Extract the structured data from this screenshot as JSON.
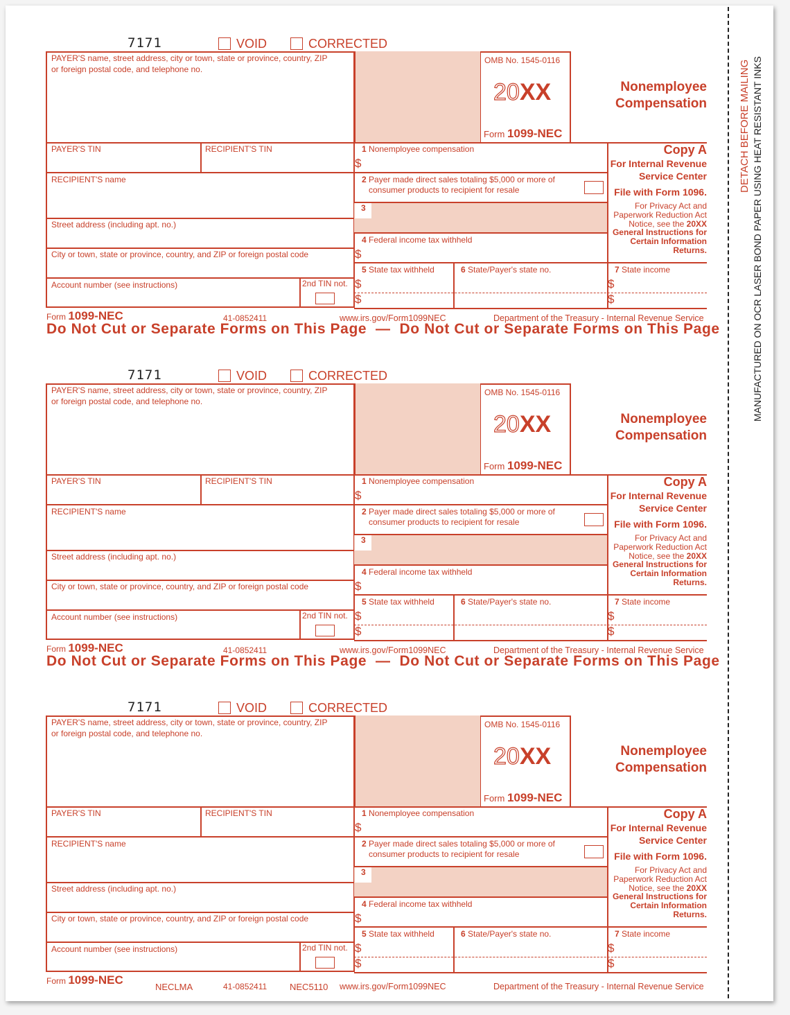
{
  "form": {
    "code": "7171",
    "void_label": "VOID",
    "corrected_label": "CORRECTED",
    "payer_name_label_1": "PAYER'S name, street address, city or town, state or province, country, ZIP",
    "payer_name_label_2": "or foreign postal code, and telephone no.",
    "omb": "OMB No. 1545-0116",
    "year_prefix": "20",
    "year_suffix": "XX",
    "form_word": "Form",
    "form_number": "1099-NEC",
    "title_1": "Nonemployee",
    "title_2": "Compensation",
    "payer_tin": "PAYER'S TIN",
    "recipient_tin": "RECIPIENT'S TIN",
    "recipient_name": "RECIPIENT'S name",
    "street": "Street address (including apt. no.)",
    "city": "City or town, state or province, country, and ZIP or foreign postal code",
    "account": "Account number (see instructions)",
    "tin_not": "2nd TIN not.",
    "dollar": "$",
    "box1_num": "1",
    "box1": "Nonemployee compensation",
    "box2_num": "2",
    "box2_a": "Payer made direct sales totaling $5,000 or more of",
    "box2_b": "consumer products to recipient for resale",
    "box3_num": "3",
    "box4_num": "4",
    "box4": "Federal income tax withheld",
    "box5_num": "5",
    "box5": "State tax withheld",
    "box6_num": "6",
    "box6": "State/Payer's state no.",
    "box7_num": "7",
    "box7": "State income",
    "copy": "Copy A",
    "irs_1": "For Internal Revenue",
    "irs_2": "Service Center",
    "file_with": "File with Form 1096.",
    "privacy_1": "For Privacy Act and",
    "privacy_2": "Paperwork Reduction Act",
    "privacy_3": "Notice, see the",
    "privacy_3b": "20XX",
    "privacy_4": "General Instructions for",
    "privacy_5": "Certain Information",
    "privacy_6": "Returns.",
    "ein": "41-0852411",
    "url": "www.irs.gov/Form1099NEC",
    "dept": "Department of the Treasury - Internal Revenue Service",
    "do_not_cut": "Do Not Cut or Separate Forms on This Page  —  Do Not Cut or Separate Forms on This Page",
    "footer_code_1": "NECLMA",
    "footer_code_2": "NEC5110"
  },
  "margin": {
    "detach": "DETACH BEFORE MAILING",
    "manufactured": "MANUFACTURED ON OCR LASER BOND PAPER USING HEAT RESISTANT INKS"
  },
  "colors": {
    "ink": "#c8402a",
    "shade": "#f3d2c4"
  }
}
